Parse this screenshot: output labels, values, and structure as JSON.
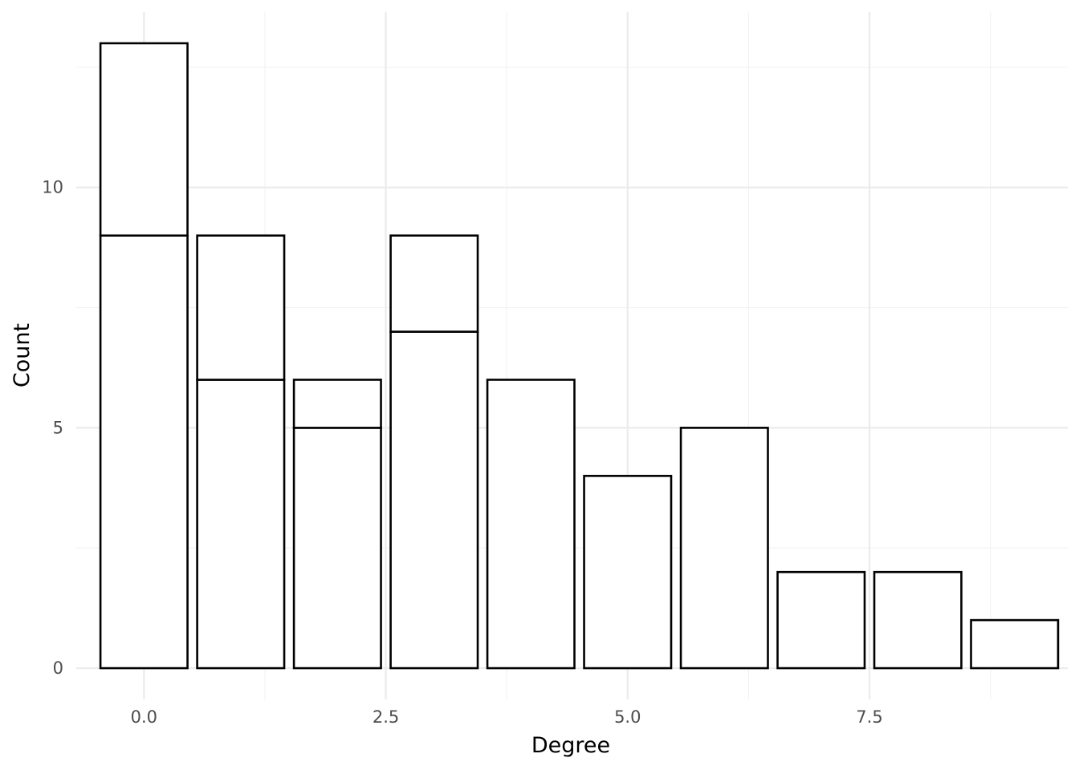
{
  "chart_data": {
    "type": "bar",
    "title": "",
    "xlabel": "Degree",
    "ylabel": "Count",
    "x": [
      0,
      1,
      2,
      3,
      4,
      5,
      6,
      7,
      8,
      9
    ],
    "stacked_segments": [
      [
        9,
        4
      ],
      [
        6,
        3
      ],
      [
        5,
        1
      ],
      [
        7,
        2
      ],
      [
        6
      ],
      [
        4
      ],
      [
        5
      ],
      [
        2
      ],
      [
        2
      ],
      [
        1
      ]
    ],
    "totals": [
      13,
      9,
      6,
      9,
      6,
      4,
      5,
      2,
      2,
      1
    ],
    "xlim": [
      -0.7,
      9.55
    ],
    "ylim": [
      -0.65,
      13.65
    ],
    "x_ticks": [
      {
        "value": 0,
        "label": "0.0"
      },
      {
        "value": 2.5,
        "label": "2.5"
      },
      {
        "value": 5,
        "label": "5.0"
      },
      {
        "value": 7.5,
        "label": "7.5"
      }
    ],
    "y_ticks": [
      {
        "value": 0,
        "label": "0"
      },
      {
        "value": 5,
        "label": "5"
      },
      {
        "value": 10,
        "label": "10"
      }
    ],
    "grid": true,
    "legend": "none",
    "bar_fill": "#ffffff",
    "bar_stroke": "#000000"
  }
}
